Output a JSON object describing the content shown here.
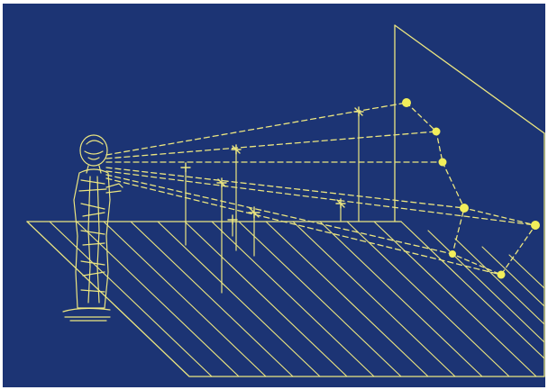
{
  "colors": {
    "background": "#1c3474",
    "line": "#ece680",
    "star": "#f2ee5a",
    "frame": "#ffffff"
  },
  "icons": {
    "observer": "standing-person-figure",
    "star": "star-dot-icon"
  }
}
